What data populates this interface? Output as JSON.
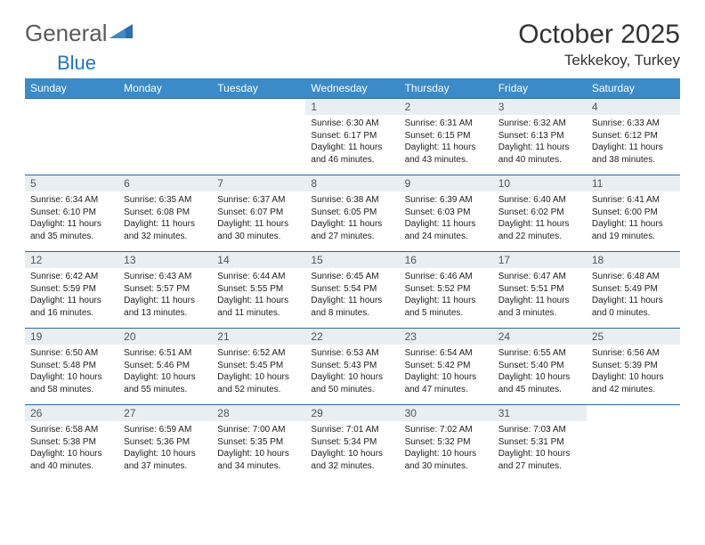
{
  "brand": {
    "name_a": "General",
    "name_b": "Blue"
  },
  "title": "October 2025",
  "location": "Tekkekoy, Turkey",
  "colors": {
    "header_bg": "#3b8bc8",
    "header_text": "#ffffff",
    "row_border": "#2a6a9e",
    "daynum_bg": "#e8eef2",
    "brand_blue": "#2176c1",
    "brand_gray": "#5a5a5a"
  },
  "weekdays": [
    "Sunday",
    "Monday",
    "Tuesday",
    "Wednesday",
    "Thursday",
    "Friday",
    "Saturday"
  ],
  "weeks": [
    [
      null,
      null,
      null,
      {
        "n": "1",
        "sr": "6:30 AM",
        "ss": "6:17 PM",
        "dl": "11 hours and 46 minutes."
      },
      {
        "n": "2",
        "sr": "6:31 AM",
        "ss": "6:15 PM",
        "dl": "11 hours and 43 minutes."
      },
      {
        "n": "3",
        "sr": "6:32 AM",
        "ss": "6:13 PM",
        "dl": "11 hours and 40 minutes."
      },
      {
        "n": "4",
        "sr": "6:33 AM",
        "ss": "6:12 PM",
        "dl": "11 hours and 38 minutes."
      }
    ],
    [
      {
        "n": "5",
        "sr": "6:34 AM",
        "ss": "6:10 PM",
        "dl": "11 hours and 35 minutes."
      },
      {
        "n": "6",
        "sr": "6:35 AM",
        "ss": "6:08 PM",
        "dl": "11 hours and 32 minutes."
      },
      {
        "n": "7",
        "sr": "6:37 AM",
        "ss": "6:07 PM",
        "dl": "11 hours and 30 minutes."
      },
      {
        "n": "8",
        "sr": "6:38 AM",
        "ss": "6:05 PM",
        "dl": "11 hours and 27 minutes."
      },
      {
        "n": "9",
        "sr": "6:39 AM",
        "ss": "6:03 PM",
        "dl": "11 hours and 24 minutes."
      },
      {
        "n": "10",
        "sr": "6:40 AM",
        "ss": "6:02 PM",
        "dl": "11 hours and 22 minutes."
      },
      {
        "n": "11",
        "sr": "6:41 AM",
        "ss": "6:00 PM",
        "dl": "11 hours and 19 minutes."
      }
    ],
    [
      {
        "n": "12",
        "sr": "6:42 AM",
        "ss": "5:59 PM",
        "dl": "11 hours and 16 minutes."
      },
      {
        "n": "13",
        "sr": "6:43 AM",
        "ss": "5:57 PM",
        "dl": "11 hours and 13 minutes."
      },
      {
        "n": "14",
        "sr": "6:44 AM",
        "ss": "5:55 PM",
        "dl": "11 hours and 11 minutes."
      },
      {
        "n": "15",
        "sr": "6:45 AM",
        "ss": "5:54 PM",
        "dl": "11 hours and 8 minutes."
      },
      {
        "n": "16",
        "sr": "6:46 AM",
        "ss": "5:52 PM",
        "dl": "11 hours and 5 minutes."
      },
      {
        "n": "17",
        "sr": "6:47 AM",
        "ss": "5:51 PM",
        "dl": "11 hours and 3 minutes."
      },
      {
        "n": "18",
        "sr": "6:48 AM",
        "ss": "5:49 PM",
        "dl": "11 hours and 0 minutes."
      }
    ],
    [
      {
        "n": "19",
        "sr": "6:50 AM",
        "ss": "5:48 PM",
        "dl": "10 hours and 58 minutes."
      },
      {
        "n": "20",
        "sr": "6:51 AM",
        "ss": "5:46 PM",
        "dl": "10 hours and 55 minutes."
      },
      {
        "n": "21",
        "sr": "6:52 AM",
        "ss": "5:45 PM",
        "dl": "10 hours and 52 minutes."
      },
      {
        "n": "22",
        "sr": "6:53 AM",
        "ss": "5:43 PM",
        "dl": "10 hours and 50 minutes."
      },
      {
        "n": "23",
        "sr": "6:54 AM",
        "ss": "5:42 PM",
        "dl": "10 hours and 47 minutes."
      },
      {
        "n": "24",
        "sr": "6:55 AM",
        "ss": "5:40 PM",
        "dl": "10 hours and 45 minutes."
      },
      {
        "n": "25",
        "sr": "6:56 AM",
        "ss": "5:39 PM",
        "dl": "10 hours and 42 minutes."
      }
    ],
    [
      {
        "n": "26",
        "sr": "6:58 AM",
        "ss": "5:38 PM",
        "dl": "10 hours and 40 minutes."
      },
      {
        "n": "27",
        "sr": "6:59 AM",
        "ss": "5:36 PM",
        "dl": "10 hours and 37 minutes."
      },
      {
        "n": "28",
        "sr": "7:00 AM",
        "ss": "5:35 PM",
        "dl": "10 hours and 34 minutes."
      },
      {
        "n": "29",
        "sr": "7:01 AM",
        "ss": "5:34 PM",
        "dl": "10 hours and 32 minutes."
      },
      {
        "n": "30",
        "sr": "7:02 AM",
        "ss": "5:32 PM",
        "dl": "10 hours and 30 minutes."
      },
      {
        "n": "31",
        "sr": "7:03 AM",
        "ss": "5:31 PM",
        "dl": "10 hours and 27 minutes."
      },
      null
    ]
  ],
  "labels": {
    "sunrise": "Sunrise:",
    "sunset": "Sunset:",
    "daylight": "Daylight:"
  }
}
